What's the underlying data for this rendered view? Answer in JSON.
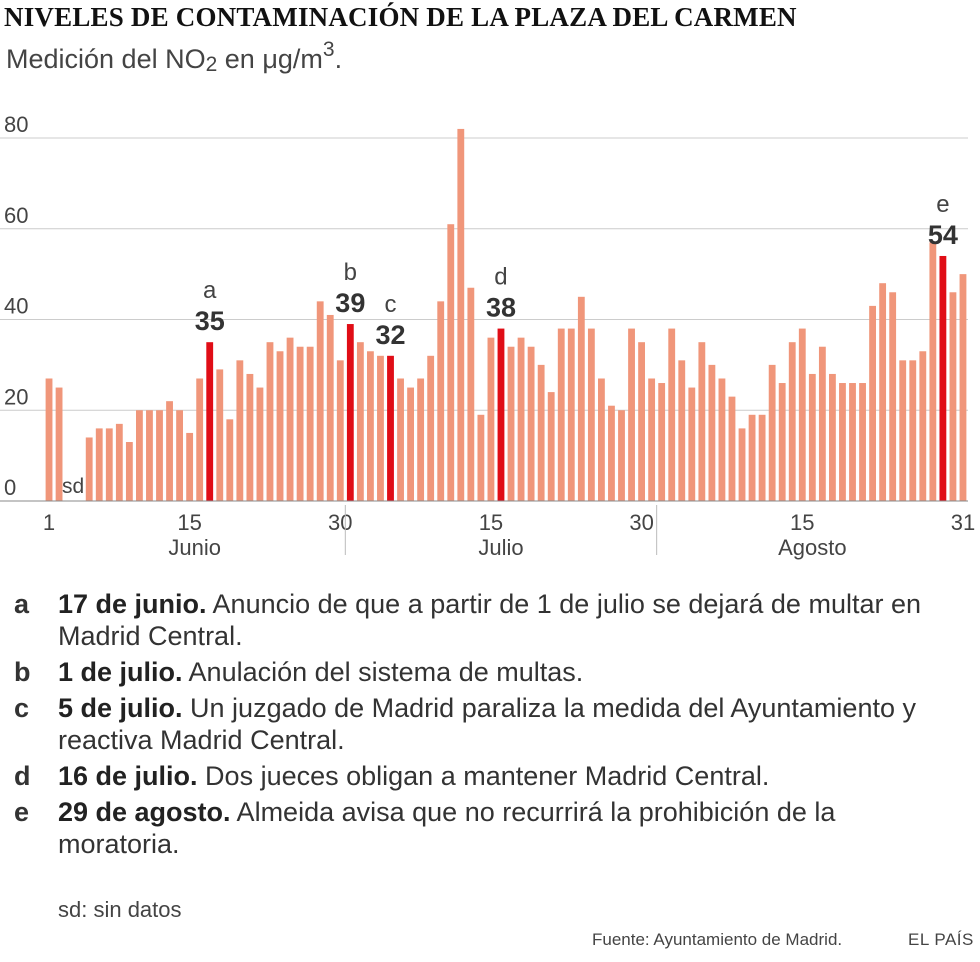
{
  "title": "NIVELES DE CONTAMINACIÓN DE LA PLAZA DEL CARMEN",
  "subtitle": {
    "prefix": "Medición del NO",
    "sub": "2",
    "middle": " en μg/m",
    "sup": "3",
    "suffix": "."
  },
  "chart_data": {
    "type": "bar",
    "title": "NIVELES DE CONTAMINACIÓN DE LA PLAZA DEL CARMEN",
    "ylabel": "Medición del NO2 en μg/m3",
    "ylim": [
      0,
      80
    ],
    "yticks": [
      0,
      20,
      40,
      60,
      80
    ],
    "grid": true,
    "x_tick_labels": [
      {
        "index": 0,
        "label": "1"
      },
      {
        "index": 14,
        "label": "15"
      },
      {
        "index": 29,
        "label": "30"
      },
      {
        "index": 44,
        "label": "15"
      },
      {
        "index": 59,
        "label": "30"
      },
      {
        "index": 75,
        "label": "15"
      },
      {
        "index": 91,
        "label": "31"
      }
    ],
    "months": [
      {
        "label": "Junio",
        "start": 0,
        "end": 29
      },
      {
        "label": "Julio",
        "start": 30,
        "end": 60
      },
      {
        "label": "Agosto",
        "start": 61,
        "end": 91
      }
    ],
    "colors": {
      "bar": "#f0967a",
      "highlight": "#e00d16",
      "grid": "#cccccc",
      "axis": "#888888"
    },
    "values": [
      27,
      25,
      null,
      null,
      14,
      16,
      16,
      17,
      13,
      20,
      20,
      20,
      22,
      20,
      15,
      27,
      35,
      29,
      18,
      31,
      28,
      25,
      35,
      33,
      36,
      34,
      34,
      44,
      41,
      31,
      39,
      35,
      33,
      32,
      32,
      27,
      25,
      27,
      32,
      44,
      61,
      82,
      47,
      19,
      36,
      38,
      34,
      36,
      34,
      30,
      24,
      38,
      38,
      45,
      38,
      27,
      21,
      20,
      38,
      35,
      27,
      26,
      38,
      31,
      25,
      35,
      30,
      27,
      23,
      16,
      19,
      19,
      30,
      26,
      35,
      38,
      28,
      34,
      28,
      26,
      26,
      26,
      43,
      48,
      46,
      31,
      31,
      33,
      57,
      54,
      46,
      50
    ],
    "sd_label": "sd",
    "annotations": [
      {
        "letter": "a",
        "index": 16,
        "value": 35
      },
      {
        "letter": "b",
        "index": 30,
        "value": 39
      },
      {
        "letter": "c",
        "index": 34,
        "value": 32
      },
      {
        "letter": "d",
        "index": 45,
        "value": 38
      },
      {
        "letter": "e",
        "index": 89,
        "value": 54
      }
    ]
  },
  "notes": [
    {
      "letter": "a",
      "date": "17 de junio.",
      "text": " Anuncio de que a partir de 1 de julio se dejará de multar en Madrid Central."
    },
    {
      "letter": "b",
      "date": "1 de julio.",
      "text": " Anulación del sistema de multas."
    },
    {
      "letter": "c",
      "date": "5 de julio.",
      "text": " Un juzgado de Madrid paraliza la medida del Ayuntamiento y reactiva Madrid Central."
    },
    {
      "letter": "d",
      "date": "16 de julio.",
      "text": " Dos jueces obligan a mantener Madrid Central."
    },
    {
      "letter": "e",
      "date": "29 de agosto.",
      "text": " Almeida avisa que no recurrirá la prohibición de la moratoria."
    }
  ],
  "sd_legend": "sd: sin datos",
  "source": "Fuente: Ayuntamiento de Madrid.",
  "brand": "EL PAÍS"
}
